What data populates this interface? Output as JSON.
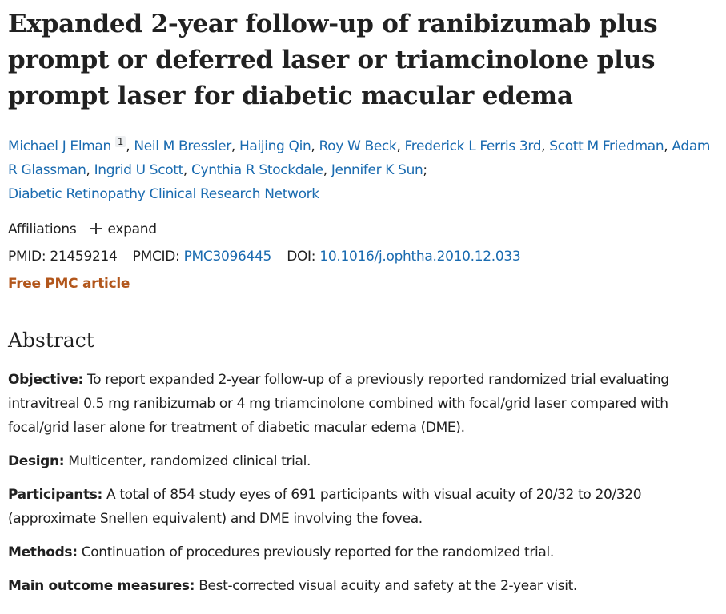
{
  "article": {
    "title": "Expanded 2-year follow-up of ranibizumab plus prompt or deferred laser or triamcinolone plus prompt laser for diabetic macular edema",
    "authors": [
      {
        "name": "Michael J Elman",
        "sup": "1"
      },
      {
        "name": "Neil M Bressler"
      },
      {
        "name": "Haijing Qin"
      },
      {
        "name": "Roy W Beck"
      },
      {
        "name": "Frederick L Ferris 3rd"
      },
      {
        "name": "Scott M Friedman"
      },
      {
        "name": "Adam R Glassman"
      },
      {
        "name": "Ingrid U Scott"
      },
      {
        "name": "Cynthia R Stockdale"
      },
      {
        "name": "Jennifer K Sun"
      }
    ],
    "group_author": "Diabetic Retinopathy Clinical Research Network",
    "affiliations_label": "Affiliations",
    "expand_label": "expand",
    "pmid_label": "PMID:",
    "pmid_value": "21459214",
    "pmcid_label": "PMCID:",
    "pmcid_value": "PMC3096445",
    "doi_label": "DOI:",
    "doi_value": "10.1016/j.ophtha.2010.12.033",
    "free_pmc_label": "Free PMC article"
  },
  "abstract": {
    "heading": "Abstract",
    "sections": [
      {
        "label": "Objective:",
        "text": "To report expanded 2-year follow-up of a previously reported randomized trial evaluating intravitreal 0.5 mg ranibizumab or 4 mg triamcinolone combined with focal/grid laser compared with focal/grid laser alone for treatment of diabetic macular edema (DME)."
      },
      {
        "label": "Design:",
        "text": "Multicenter, randomized clinical trial."
      },
      {
        "label": "Participants:",
        "text": "A total of 854 study eyes of 691 participants with visual acuity of 20/32 to 20/320 (approximate Snellen equivalent) and DME involving the fovea."
      },
      {
        "label": "Methods:",
        "text": "Continuation of procedures previously reported for the randomized trial."
      },
      {
        "label": "Main outcome measures:",
        "text": "Best-corrected visual acuity and safety at the 2-year visit."
      }
    ]
  },
  "colors": {
    "link": "#1a6bb0",
    "free_pmc": "#b2561b",
    "text": "#212121"
  },
  "icons": {
    "expand": "plus-icon"
  }
}
